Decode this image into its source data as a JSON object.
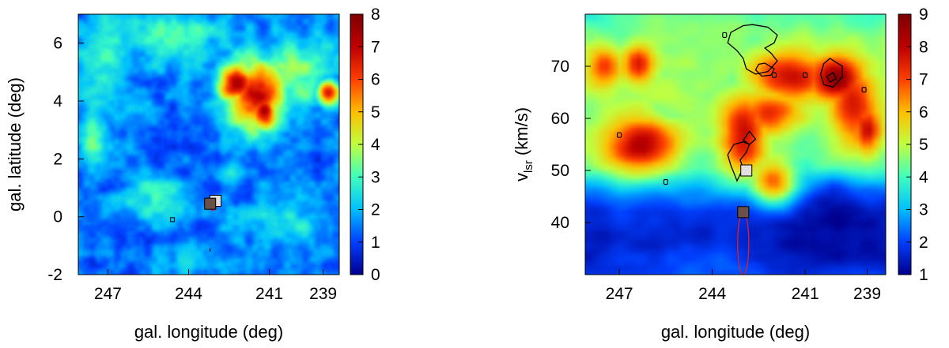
{
  "chart_data": [
    {
      "type": "heatmap",
      "panel": "left",
      "xlabel": "gal. longitude (deg)",
      "ylabel": "gal. latitude (deg)",
      "xlim": [
        248.1,
        238.4
      ],
      "ylim": [
        -2,
        7
      ],
      "x_ticks": [
        "247",
        "244",
        "241",
        "239"
      ],
      "x_tick_values": [
        247,
        244,
        241,
        239
      ],
      "y_ticks": [
        "-2",
        "0",
        "2",
        "4",
        "6"
      ],
      "y_tick_values": [
        -2,
        0,
        2,
        4,
        6
      ],
      "colorbar": {
        "ticks": [
          "0",
          "1",
          "2",
          "3",
          "4",
          "5",
          "6",
          "7",
          "8"
        ],
        "min": 0,
        "max": 8
      },
      "colormap": [
        "#00008f",
        "#0040ff",
        "#00c0ff",
        "#40ffbf",
        "#c0ff40",
        "#ffbf00",
        "#ff4000",
        "#bf0000",
        "#800000"
      ],
      "background_level": 1.3,
      "features": [
        {
          "kind": "blob",
          "x": 242.2,
          "y": 4.6,
          "value": 7.6,
          "sx": 0.5,
          "sy": 0.45
        },
        {
          "kind": "blob",
          "x": 241.2,
          "y": 3.6,
          "value": 7.4,
          "sx": 0.35,
          "sy": 0.45
        },
        {
          "kind": "blob",
          "x": 241.5,
          "y": 4.2,
          "value": 6.6,
          "sx": 0.8,
          "sy": 0.9
        },
        {
          "kind": "blob",
          "x": 238.8,
          "y": 4.3,
          "value": 6.8,
          "sx": 0.3,
          "sy": 0.3
        },
        {
          "kind": "blob",
          "x": 240.0,
          "y": 5.0,
          "value": 3.6,
          "sx": 1.0,
          "sy": 0.9
        },
        {
          "kind": "blob",
          "x": 244.5,
          "y": 6.2,
          "value": 2.8,
          "sx": 1.6,
          "sy": 0.8
        },
        {
          "kind": "blob",
          "x": 247.2,
          "y": 5.4,
          "value": 2.8,
          "sx": 0.9,
          "sy": 1.3
        },
        {
          "kind": "blob",
          "x": 247.6,
          "y": 2.6,
          "value": 3.4,
          "sx": 0.4,
          "sy": 0.7
        },
        {
          "kind": "blob",
          "x": 245.2,
          "y": 0.6,
          "value": 2.7,
          "sx": 1.0,
          "sy": 0.6
        },
        {
          "kind": "blob",
          "x": 242.5,
          "y": 1.4,
          "value": 2.8,
          "sx": 0.3,
          "sy": 0.3
        },
        {
          "kind": "blob",
          "x": 240.5,
          "y": -0.2,
          "value": 2.4,
          "sx": 1.2,
          "sy": 0.8
        },
        {
          "kind": "blob",
          "x": 243.8,
          "y": -1.4,
          "value": 2.2,
          "sx": 1.0,
          "sy": 0.5
        }
      ],
      "markers": [
        {
          "name": "light-square",
          "x": 243.0,
          "y": 0.55,
          "color": "#e0e0e0"
        },
        {
          "name": "dark-square",
          "x": 243.2,
          "y": 0.45,
          "color": "#6b5048"
        }
      ],
      "ellipses": [
        {
          "x": 243.1,
          "y": 0.45,
          "rx": 0.15,
          "ry": 0.22,
          "color": "#e02020"
        }
      ]
    },
    {
      "type": "heatmap",
      "panel": "right",
      "xlabel": "gal. longitude (deg)",
      "ylabel": "vlsr (km/s)",
      "ylabel_main": "v",
      "ylabel_sub": "lsr",
      "ylabel_unit": " (km/s)",
      "xlim": [
        248.1,
        238.4
      ],
      "ylim": [
        30,
        80
      ],
      "x_ticks": [
        "247",
        "244",
        "241",
        "239"
      ],
      "x_tick_values": [
        247,
        244,
        241,
        239
      ],
      "y_ticks": [
        "40",
        "50",
        "60",
        "70"
      ],
      "y_tick_values": [
        40,
        50,
        60,
        70
      ],
      "colorbar": {
        "ticks": [
          "1",
          "2",
          "3",
          "4",
          "5",
          "6",
          "7",
          "8",
          "9"
        ],
        "min": 1,
        "max": 9
      },
      "colormap": [
        "#00008f",
        "#0040ff",
        "#00c0ff",
        "#40ffbf",
        "#c0ff40",
        "#ffbf00",
        "#ff4000",
        "#bf0000",
        "#800000"
      ],
      "vertical_profile": [
        {
          "v": 30,
          "value": 2.0
        },
        {
          "v": 36,
          "value": 1.6
        },
        {
          "v": 42,
          "value": 1.8
        },
        {
          "v": 46,
          "value": 2.6
        },
        {
          "v": 50,
          "value": 4.0
        },
        {
          "v": 55,
          "value": 4.6
        },
        {
          "v": 62,
          "value": 4.8
        },
        {
          "v": 70,
          "value": 4.6
        },
        {
          "v": 80,
          "value": 4.2
        }
      ],
      "features": [
        {
          "kind": "blob",
          "x": 246.3,
          "y": 55.0,
          "value": 8.2,
          "sx": 0.8,
          "sy": 3.5
        },
        {
          "kind": "blob",
          "x": 243.0,
          "y": 57.0,
          "value": 8.2,
          "sx": 0.5,
          "sy": 5.0
        },
        {
          "kind": "blob",
          "x": 242.2,
          "y": 61.0,
          "value": 7.2,
          "sx": 0.6,
          "sy": 3.0
        },
        {
          "kind": "blob",
          "x": 241.5,
          "y": 68.0,
          "value": 7.8,
          "sx": 0.9,
          "sy": 3.0
        },
        {
          "kind": "blob",
          "x": 240.0,
          "y": 67.5,
          "value": 8.8,
          "sx": 0.6,
          "sy": 3.0
        },
        {
          "kind": "blob",
          "x": 239.5,
          "y": 63.0,
          "value": 7.8,
          "sx": 0.5,
          "sy": 5.0
        },
        {
          "kind": "blob",
          "x": 239.0,
          "y": 58.0,
          "value": 7.6,
          "sx": 0.3,
          "sy": 3.0
        },
        {
          "kind": "blob",
          "x": 247.5,
          "y": 70.0,
          "value": 7.4,
          "sx": 0.4,
          "sy": 2.5
        },
        {
          "kind": "blob",
          "x": 246.4,
          "y": 70.5,
          "value": 7.6,
          "sx": 0.35,
          "sy": 2.5
        },
        {
          "kind": "blob",
          "x": 245.4,
          "y": 64.0,
          "value": 3.4,
          "sx": 0.3,
          "sy": 2.5
        },
        {
          "kind": "blob",
          "x": 243.6,
          "y": 73.0,
          "value": 3.6,
          "sx": 0.4,
          "sy": 4.0
        },
        {
          "kind": "blob",
          "x": 242.0,
          "y": 48.0,
          "value": 6.6,
          "sx": 0.5,
          "sy": 3.0
        },
        {
          "kind": "blob",
          "x": 240.0,
          "y": 40.0,
          "value": 1.2,
          "sx": 1.5,
          "sy": 5.0
        }
      ],
      "markers": [
        {
          "name": "light-square",
          "x": 242.9,
          "y": 50.0,
          "color": "#e0e0e0"
        },
        {
          "name": "dark-square",
          "x": 243.0,
          "y": 42.0,
          "color": "#6b5048"
        }
      ],
      "ellipses": [
        {
          "x": 243.0,
          "y": 36.0,
          "rx": 0.18,
          "ry": 6.0,
          "color": "#e02020"
        }
      ],
      "contours": [
        [
          [
            242.7,
            78.0
          ],
          [
            242.2,
            77.5
          ],
          [
            241.9,
            76.0
          ],
          [
            242.0,
            74.5
          ],
          [
            242.3,
            73.5
          ],
          [
            242.1,
            72.5
          ],
          [
            241.9,
            71.0
          ],
          [
            242.2,
            69.0
          ],
          [
            242.6,
            68.5
          ],
          [
            242.9,
            69.5
          ],
          [
            243.0,
            71.5
          ],
          [
            243.2,
            73.0
          ],
          [
            243.5,
            74.5
          ],
          [
            243.4,
            76.5
          ],
          [
            243.0,
            77.8
          ],
          [
            242.7,
            78.0
          ]
        ],
        [
          [
            242.3,
            70.6
          ],
          [
            242.0,
            69.5
          ],
          [
            242.1,
            68.3
          ],
          [
            242.4,
            68.1
          ],
          [
            242.6,
            69.3
          ],
          [
            242.5,
            70.4
          ],
          [
            242.3,
            70.6
          ]
        ],
        [
          [
            240.2,
            71.5
          ],
          [
            239.8,
            70.0
          ],
          [
            239.8,
            68.0
          ],
          [
            240.1,
            66.0
          ],
          [
            240.4,
            66.5
          ],
          [
            240.5,
            68.5
          ],
          [
            240.4,
            70.5
          ],
          [
            240.2,
            71.5
          ]
        ],
        [
          [
            240.1,
            68.8
          ],
          [
            240.0,
            67.6
          ],
          [
            240.2,
            67.0
          ],
          [
            240.3,
            68.0
          ],
          [
            240.1,
            68.8
          ]
        ],
        [
          [
            243.0,
            55.5
          ],
          [
            242.8,
            55.0
          ],
          [
            242.9,
            53.5
          ],
          [
            243.1,
            52.0
          ],
          [
            243.0,
            50.5
          ],
          [
            243.2,
            48.0
          ],
          [
            243.4,
            51.0
          ],
          [
            243.5,
            53.0
          ],
          [
            243.3,
            55.0
          ],
          [
            243.0,
            55.5
          ]
        ],
        [
          [
            242.8,
            57.5
          ],
          [
            242.6,
            56.0
          ],
          [
            242.8,
            55.0
          ],
          [
            243.0,
            55.8
          ],
          [
            242.8,
            57.5
          ]
        ]
      ],
      "small_contours": [
        {
          "x": 247.0,
          "y": 56.8
        },
        {
          "x": 245.5,
          "y": 47.8
        },
        {
          "x": 243.6,
          "y": 76.0
        },
        {
          "x": 242.0,
          "y": 68.3
        },
        {
          "x": 241.0,
          "y": 68.3
        },
        {
          "x": 239.1,
          "y": 65.5
        }
      ]
    }
  ]
}
